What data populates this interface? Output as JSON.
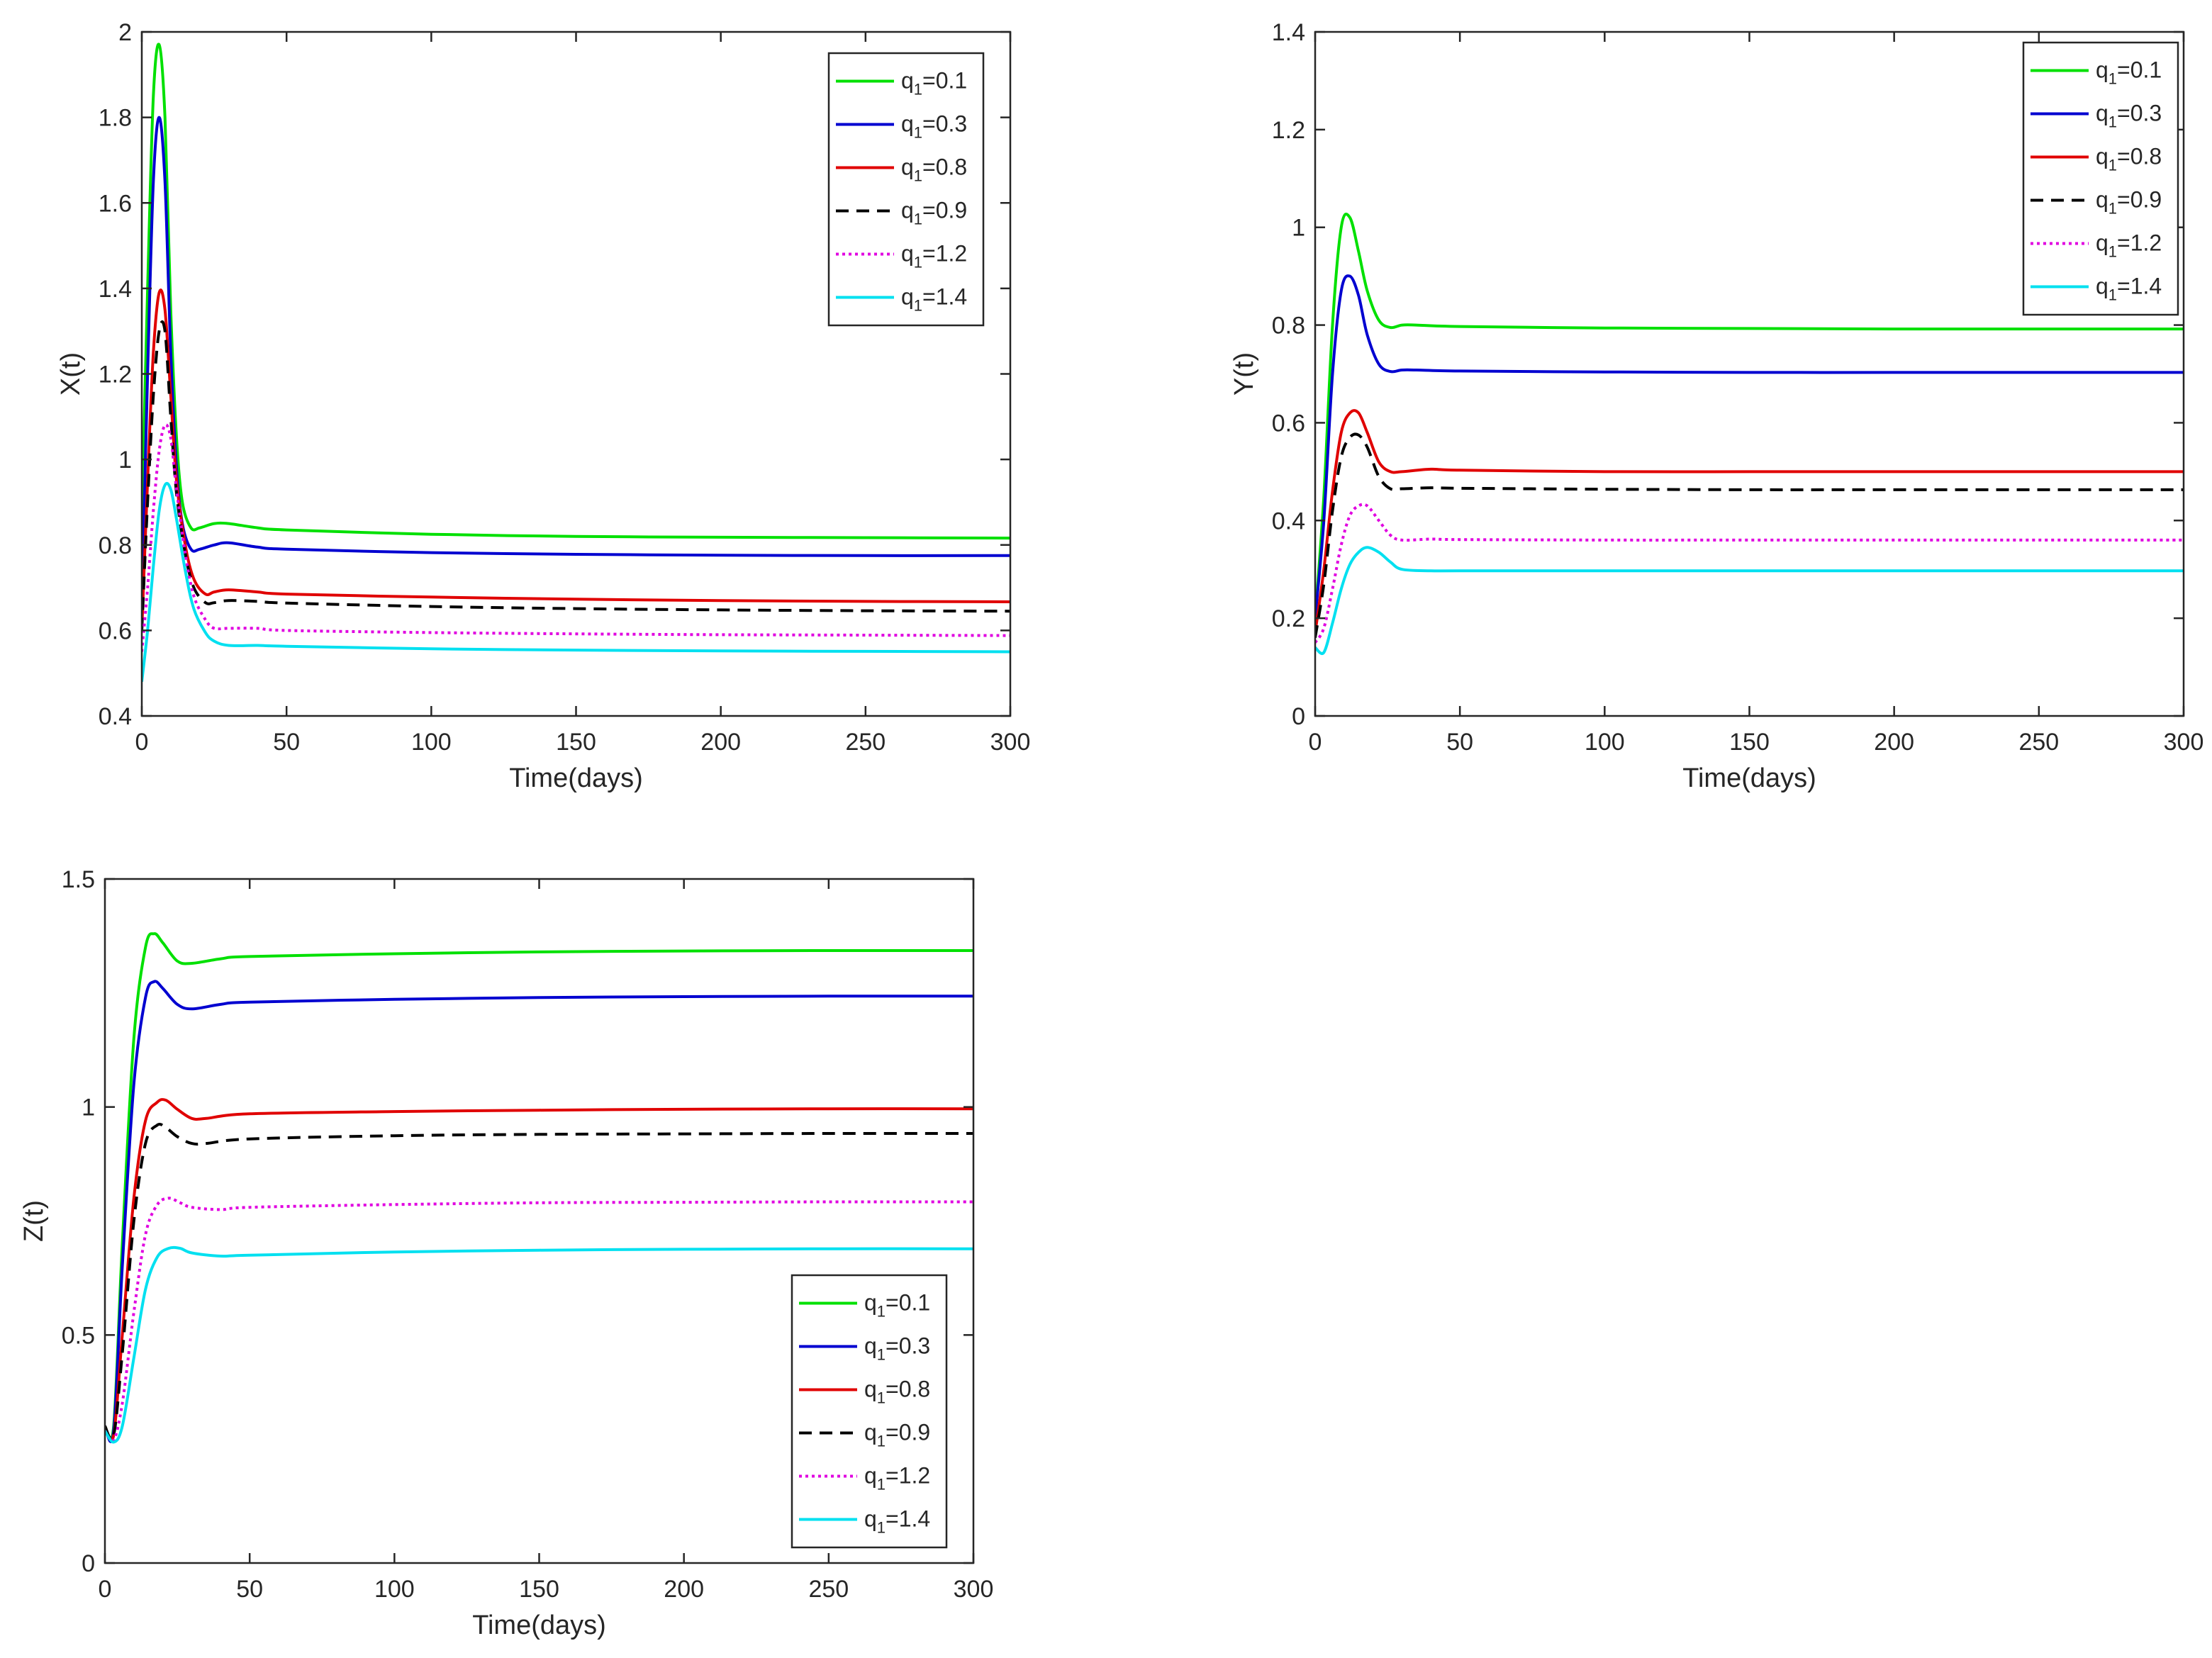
{
  "chart_data": [
    {
      "type": "line",
      "id": "x",
      "title": "",
      "xlabel": "Time(days)",
      "ylabel": "X(t)",
      "xlim": [
        0,
        300
      ],
      "ylim": [
        0.4,
        2
      ],
      "xticks": [
        0,
        50,
        100,
        150,
        200,
        250,
        300
      ],
      "yticks": [
        0.4,
        0.6,
        0.8,
        1,
        1.2,
        1.4,
        1.6,
        1.8,
        2
      ],
      "grid": false,
      "legend_position": "top-right",
      "series": [
        {
          "name": "q1=0.1",
          "color": "#00e000",
          "dash": "solid",
          "x": [
            0,
            2,
            4,
            6,
            8,
            10,
            12,
            14,
            17,
            20,
            25,
            30,
            40,
            50,
            100,
            150,
            200,
            250,
            300
          ],
          "y": [
            0.85,
            1.4,
            1.85,
            1.97,
            1.8,
            1.35,
            1.05,
            0.9,
            0.84,
            0.84,
            0.85,
            0.85,
            0.84,
            0.835,
            0.825,
            0.82,
            0.818,
            0.817,
            0.816
          ]
        },
        {
          "name": "q1=0.3",
          "color": "#0000d0",
          "dash": "solid",
          "x": [
            0,
            2,
            4,
            6,
            8,
            10,
            12,
            14,
            17,
            20,
            25,
            30,
            40,
            50,
            100,
            150,
            200,
            250,
            300
          ],
          "y": [
            0.65,
            1.2,
            1.65,
            1.8,
            1.65,
            1.25,
            0.98,
            0.85,
            0.79,
            0.79,
            0.8,
            0.805,
            0.795,
            0.79,
            0.782,
            0.778,
            0.776,
            0.775,
            0.775
          ]
        },
        {
          "name": "q1=0.8",
          "color": "#e00000",
          "dash": "solid",
          "x": [
            0,
            2,
            4,
            6,
            8,
            10,
            12,
            15,
            18,
            22,
            25,
            30,
            40,
            50,
            100,
            150,
            200,
            250,
            300
          ],
          "y": [
            0.6,
            0.95,
            1.25,
            1.39,
            1.35,
            1.15,
            0.95,
            0.8,
            0.72,
            0.685,
            0.69,
            0.695,
            0.69,
            0.685,
            0.678,
            0.673,
            0.67,
            0.668,
            0.667
          ]
        },
        {
          "name": "q1=0.9",
          "color": "#000000",
          "dash": "dashed",
          "x": [
            0,
            2,
            4,
            6,
            8,
            10,
            12,
            15,
            18,
            22,
            25,
            30,
            40,
            50,
            100,
            150,
            200,
            250,
            300
          ],
          "y": [
            0.6,
            0.9,
            1.15,
            1.3,
            1.3,
            1.1,
            0.92,
            0.78,
            0.7,
            0.665,
            0.665,
            0.67,
            0.668,
            0.664,
            0.656,
            0.651,
            0.648,
            0.646,
            0.645
          ]
        },
        {
          "name": "q1=1.2",
          "color": "#e000e0",
          "dash": "dotted",
          "x": [
            0,
            2,
            4,
            6,
            8,
            10,
            12,
            15,
            18,
            22,
            25,
            30,
            40,
            50,
            100,
            150,
            200,
            250,
            300
          ],
          "y": [
            0.55,
            0.7,
            0.88,
            1.02,
            1.08,
            1.05,
            0.93,
            0.78,
            0.68,
            0.625,
            0.605,
            0.605,
            0.605,
            0.6,
            0.595,
            0.592,
            0.59,
            0.589,
            0.588
          ]
        },
        {
          "name": "q1=1.4",
          "color": "#00e0f0",
          "dash": "solid",
          "x": [
            0,
            2,
            4,
            6,
            8,
            10,
            12,
            15,
            18,
            22,
            25,
            30,
            40,
            50,
            100,
            150,
            200,
            250,
            300
          ],
          "y": [
            0.48,
            0.6,
            0.75,
            0.88,
            0.94,
            0.93,
            0.86,
            0.74,
            0.65,
            0.595,
            0.575,
            0.565,
            0.565,
            0.563,
            0.557,
            0.554,
            0.552,
            0.551,
            0.55
          ]
        }
      ]
    },
    {
      "type": "line",
      "id": "y",
      "title": "",
      "xlabel": "Time(days)",
      "ylabel": "Y(t)",
      "xlim": [
        0,
        300
      ],
      "ylim": [
        0,
        1.4
      ],
      "xticks": [
        0,
        50,
        100,
        150,
        200,
        250,
        300
      ],
      "yticks": [
        0,
        0.2,
        0.4,
        0.6,
        0.8,
        1,
        1.2,
        1.4
      ],
      "grid": false,
      "legend_position": "top-right",
      "series": [
        {
          "name": "q1=0.1",
          "color": "#00e000",
          "dash": "solid",
          "x": [
            0,
            3,
            6,
            9,
            12,
            15,
            18,
            22,
            26,
            30,
            35,
            50,
            100,
            150,
            200,
            250,
            300
          ],
          "y": [
            0.2,
            0.45,
            0.8,
            1.0,
            1.02,
            0.95,
            0.87,
            0.81,
            0.795,
            0.8,
            0.8,
            0.797,
            0.794,
            0.793,
            0.792,
            0.792,
            0.792
          ]
        },
        {
          "name": "q1=0.3",
          "color": "#0000d0",
          "dash": "solid",
          "x": [
            0,
            3,
            6,
            9,
            12,
            15,
            18,
            22,
            26,
            30,
            35,
            50,
            100,
            150,
            200,
            250,
            300
          ],
          "y": [
            0.2,
            0.4,
            0.7,
            0.87,
            0.9,
            0.86,
            0.78,
            0.72,
            0.705,
            0.708,
            0.708,
            0.706,
            0.704,
            0.703,
            0.703,
            0.703,
            0.703
          ]
        },
        {
          "name": "q1=0.8",
          "color": "#e00000",
          "dash": "solid",
          "x": [
            0,
            3,
            6,
            9,
            12,
            15,
            18,
            22,
            26,
            30,
            40,
            50,
            100,
            150,
            200,
            250,
            300
          ],
          "y": [
            0.17,
            0.3,
            0.46,
            0.58,
            0.62,
            0.62,
            0.58,
            0.52,
            0.5,
            0.5,
            0.505,
            0.503,
            0.5,
            0.5,
            0.5,
            0.5,
            0.5
          ]
        },
        {
          "name": "q1=0.9",
          "color": "#000000",
          "dash": "dashed",
          "x": [
            0,
            3,
            6,
            9,
            12,
            15,
            18,
            22,
            26,
            30,
            40,
            50,
            100,
            150,
            200,
            250,
            300
          ],
          "y": [
            0.16,
            0.27,
            0.42,
            0.53,
            0.57,
            0.575,
            0.55,
            0.49,
            0.465,
            0.465,
            0.467,
            0.466,
            0.464,
            0.463,
            0.463,
            0.463,
            0.463
          ]
        },
        {
          "name": "q1=1.2",
          "color": "#e000e0",
          "dash": "dotted",
          "x": [
            0,
            3,
            6,
            9,
            12,
            15,
            18,
            22,
            26,
            30,
            40,
            50,
            100,
            150,
            200,
            250,
            300
          ],
          "y": [
            0.15,
            0.18,
            0.26,
            0.35,
            0.41,
            0.43,
            0.43,
            0.4,
            0.37,
            0.36,
            0.362,
            0.361,
            0.36,
            0.36,
            0.36,
            0.36,
            0.36
          ]
        },
        {
          "name": "q1=1.4",
          "color": "#00e0f0",
          "dash": "solid",
          "x": [
            0,
            3,
            6,
            9,
            12,
            15,
            18,
            22,
            26,
            30,
            40,
            50,
            100,
            150,
            200,
            250,
            300
          ],
          "y": [
            0.14,
            0.13,
            0.19,
            0.26,
            0.31,
            0.335,
            0.345,
            0.335,
            0.315,
            0.3,
            0.297,
            0.297,
            0.297,
            0.297,
            0.297,
            0.297,
            0.297
          ]
        }
      ]
    },
    {
      "type": "line",
      "id": "z",
      "title": "",
      "xlabel": "Time(days)",
      "ylabel": "Z(t)",
      "xlim": [
        0,
        300
      ],
      "ylim": [
        0,
        1.5
      ],
      "xticks": [
        0,
        50,
        100,
        150,
        200,
        250,
        300
      ],
      "yticks": [
        0,
        0.5,
        1,
        1.5
      ],
      "grid": false,
      "legend_position": "bottom-right",
      "series": [
        {
          "name": "q1=0.1",
          "color": "#00e000",
          "dash": "solid",
          "x": [
            0,
            3,
            6,
            10,
            14,
            17,
            20,
            25,
            30,
            40,
            50,
            100,
            150,
            200,
            250,
            300
          ],
          "y": [
            0.3,
            0.3,
            0.7,
            1.15,
            1.35,
            1.38,
            1.36,
            1.32,
            1.315,
            1.325,
            1.33,
            1.336,
            1.34,
            1.342,
            1.343,
            1.343
          ]
        },
        {
          "name": "q1=0.3",
          "color": "#0000d0",
          "dash": "solid",
          "x": [
            0,
            3,
            6,
            10,
            14,
            17,
            20,
            25,
            30,
            40,
            50,
            100,
            150,
            200,
            250,
            300
          ],
          "y": [
            0.3,
            0.29,
            0.65,
            1.05,
            1.24,
            1.275,
            1.26,
            1.225,
            1.215,
            1.225,
            1.23,
            1.236,
            1.24,
            1.242,
            1.243,
            1.243
          ]
        },
        {
          "name": "q1=0.8",
          "color": "#e00000",
          "dash": "solid",
          "x": [
            0,
            3,
            6,
            10,
            14,
            18,
            21,
            25,
            30,
            35,
            50,
            100,
            150,
            200,
            250,
            300
          ],
          "y": [
            0.3,
            0.28,
            0.5,
            0.8,
            0.97,
            1.01,
            1.015,
            0.995,
            0.975,
            0.975,
            0.985,
            0.99,
            0.993,
            0.995,
            0.996,
            0.996
          ]
        },
        {
          "name": "q1=0.9",
          "color": "#000000",
          "dash": "dashed",
          "x": [
            0,
            3,
            6,
            10,
            14,
            18,
            21,
            25,
            30,
            35,
            50,
            100,
            150,
            200,
            250,
            300
          ],
          "y": [
            0.3,
            0.28,
            0.46,
            0.75,
            0.92,
            0.96,
            0.955,
            0.935,
            0.92,
            0.92,
            0.93,
            0.937,
            0.94,
            0.941,
            0.942,
            0.942
          ]
        },
        {
          "name": "q1=1.2",
          "color": "#e000e0",
          "dash": "dotted",
          "x": [
            0,
            3,
            6,
            10,
            14,
            18,
            22,
            26,
            30,
            40,
            50,
            100,
            150,
            200,
            250,
            300
          ],
          "y": [
            0.29,
            0.27,
            0.35,
            0.55,
            0.72,
            0.785,
            0.8,
            0.79,
            0.78,
            0.775,
            0.78,
            0.786,
            0.79,
            0.791,
            0.792,
            0.792
          ]
        },
        {
          "name": "q1=1.4",
          "color": "#00e0f0",
          "dash": "solid",
          "x": [
            0,
            3,
            6,
            10,
            14,
            18,
            22,
            26,
            30,
            40,
            50,
            100,
            150,
            200,
            250,
            300
          ],
          "y": [
            0.29,
            0.265,
            0.3,
            0.45,
            0.6,
            0.67,
            0.69,
            0.69,
            0.68,
            0.673,
            0.675,
            0.682,
            0.686,
            0.688,
            0.689,
            0.689
          ]
        }
      ]
    }
  ]
}
